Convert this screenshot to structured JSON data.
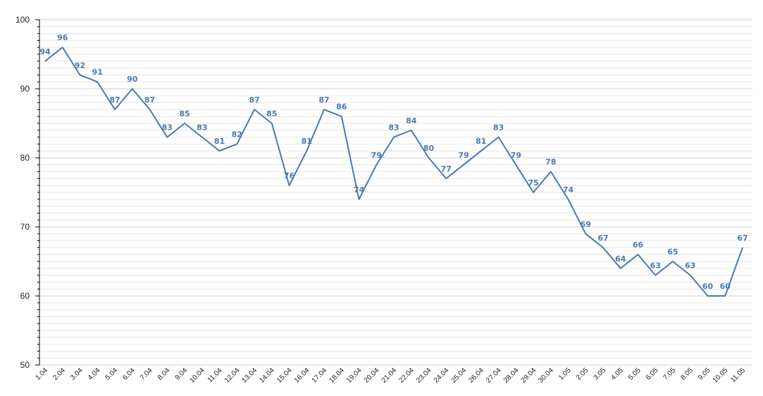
{
  "chart_data": {
    "type": "line",
    "title": "",
    "xlabel": "",
    "ylabel": "",
    "ylim": [
      50,
      100
    ],
    "y_major_ticks": [
      50,
      60,
      70,
      80,
      90,
      100
    ],
    "y_minor_step": 1,
    "grid": true,
    "legend": "none",
    "colors": {
      "series": "#4a7ab0",
      "label": "#4a7ab0",
      "axis": "#000000",
      "grid": "#cfcfcf"
    },
    "categories": [
      "1.04",
      "2.04",
      "3.04",
      "4.04",
      "5.04",
      "6.04",
      "7.04",
      "8.04",
      "9.04",
      "10.04",
      "11.04",
      "12.04",
      "13.04",
      "14.04",
      "15.04",
      "16.04",
      "17.04",
      "18.04",
      "19.04",
      "20.04",
      "21.04",
      "22.04",
      "23.04",
      "24.04",
      "25.04",
      "26.04",
      "27.04",
      "28.04",
      "29.04",
      "30.04",
      "1.05",
      "2.05",
      "3.05",
      "4.05",
      "5.05",
      "6.05",
      "7.05",
      "8.05",
      "9.05",
      "10.05",
      "11.05"
    ],
    "series": [
      {
        "values": [
          94,
          96,
          92,
          91,
          87,
          90,
          87,
          83,
          85,
          83,
          81,
          82,
          87,
          85,
          76,
          81,
          87,
          86,
          74,
          79,
          83,
          84,
          80,
          77,
          79,
          81,
          83,
          79,
          75,
          78,
          74,
          69,
          67,
          64,
          66,
          63,
          65,
          63,
          60,
          60,
          67
        ]
      }
    ]
  }
}
